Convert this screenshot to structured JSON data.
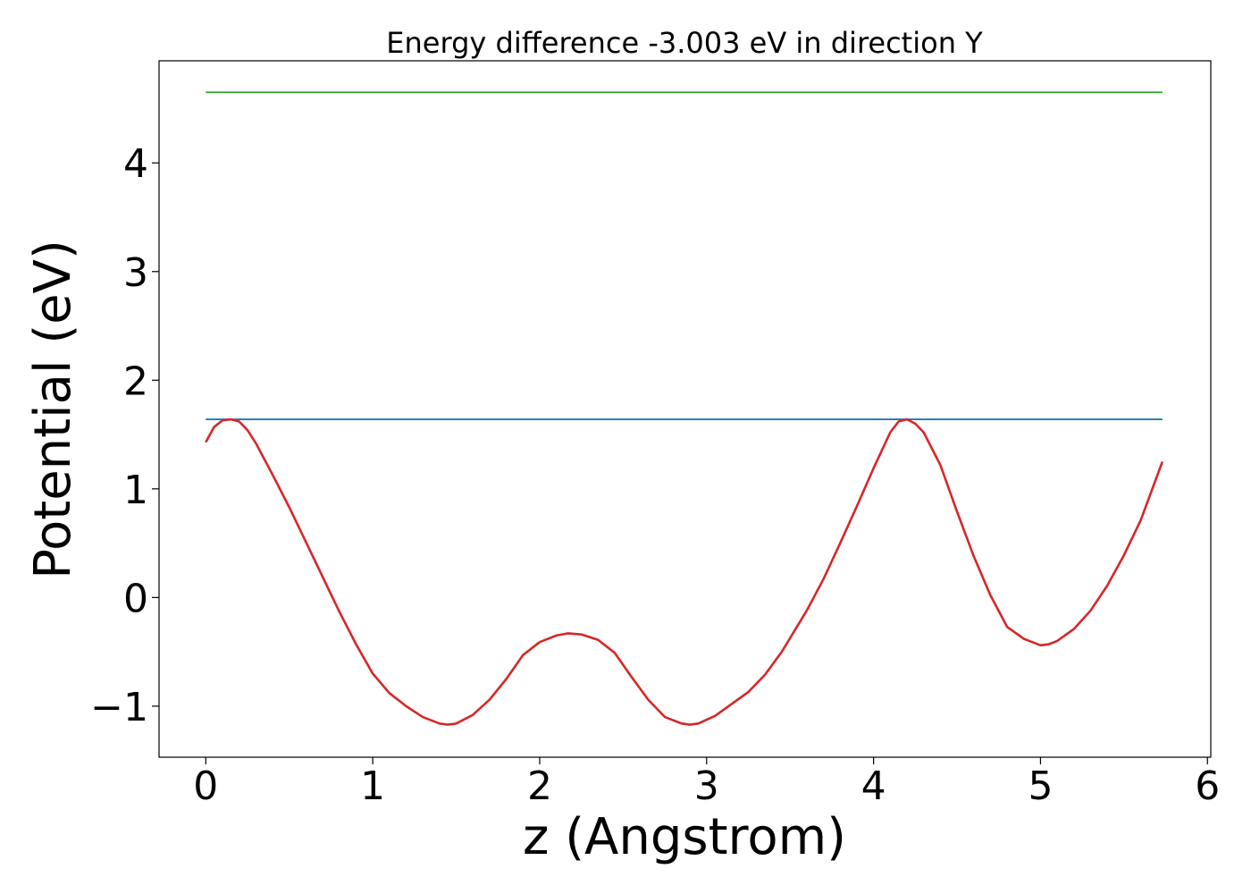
{
  "chart_data": {
    "type": "line",
    "title": "Energy difference -3.003 eV in direction Y",
    "xlabel": "z (Angstrom)",
    "ylabel": "Potential (eV)",
    "xlim": [
      -0.28,
      6.02
    ],
    "ylim": [
      -1.47,
      4.94
    ],
    "xticks": [
      0,
      1,
      2,
      3,
      4,
      5,
      6
    ],
    "xtick_labels": [
      "0",
      "1",
      "2",
      "3",
      "4",
      "5",
      "6"
    ],
    "yticks": [
      -1,
      0,
      1,
      2,
      3,
      4
    ],
    "ytick_labels": [
      "−1",
      "0",
      "1",
      "2",
      "3",
      "4"
    ],
    "grid": false,
    "series": [
      {
        "color": "#2ca02c",
        "x": [
          0,
          5.73
        ],
        "y": [
          4.65,
          4.65
        ]
      },
      {
        "color": "#1f77b4",
        "x": [
          0,
          5.73
        ],
        "y": [
          1.64,
          1.64
        ]
      },
      {
        "color": "#d62728",
        "x": [
          0.0,
          0.05,
          0.1,
          0.15,
          0.2,
          0.25,
          0.3,
          0.4,
          0.5,
          0.6,
          0.7,
          0.8,
          0.9,
          1.0,
          1.1,
          1.2,
          1.3,
          1.4,
          1.45,
          1.5,
          1.6,
          1.7,
          1.8,
          1.9,
          2.0,
          2.1,
          2.17,
          2.25,
          2.35,
          2.45,
          2.55,
          2.65,
          2.75,
          2.85,
          2.9,
          2.95,
          3.05,
          3.15,
          3.25,
          3.35,
          3.45,
          3.6,
          3.7,
          3.8,
          3.9,
          4.0,
          4.1,
          4.15,
          4.2,
          4.25,
          4.3,
          4.4,
          4.5,
          4.6,
          4.7,
          4.8,
          4.9,
          5.0,
          5.05,
          5.1,
          5.2,
          5.3,
          5.4,
          5.5,
          5.6,
          5.73
        ],
        "y": [
          1.43,
          1.57,
          1.63,
          1.64,
          1.62,
          1.54,
          1.42,
          1.13,
          0.83,
          0.51,
          0.19,
          -0.13,
          -0.43,
          -0.7,
          -0.88,
          -1.0,
          -1.1,
          -1.16,
          -1.17,
          -1.16,
          -1.08,
          -0.94,
          -0.75,
          -0.53,
          -0.41,
          -0.35,
          -0.33,
          -0.34,
          -0.39,
          -0.51,
          -0.73,
          -0.94,
          -1.1,
          -1.16,
          -1.17,
          -1.16,
          -1.09,
          -0.98,
          -0.87,
          -0.71,
          -0.5,
          -0.12,
          0.17,
          0.5,
          0.84,
          1.19,
          1.52,
          1.62,
          1.64,
          1.6,
          1.52,
          1.22,
          0.79,
          0.38,
          0.02,
          -0.27,
          -0.38,
          -0.44,
          -0.43,
          -0.4,
          -0.29,
          -0.12,
          0.11,
          0.39,
          0.71,
          1.25
        ]
      }
    ]
  }
}
